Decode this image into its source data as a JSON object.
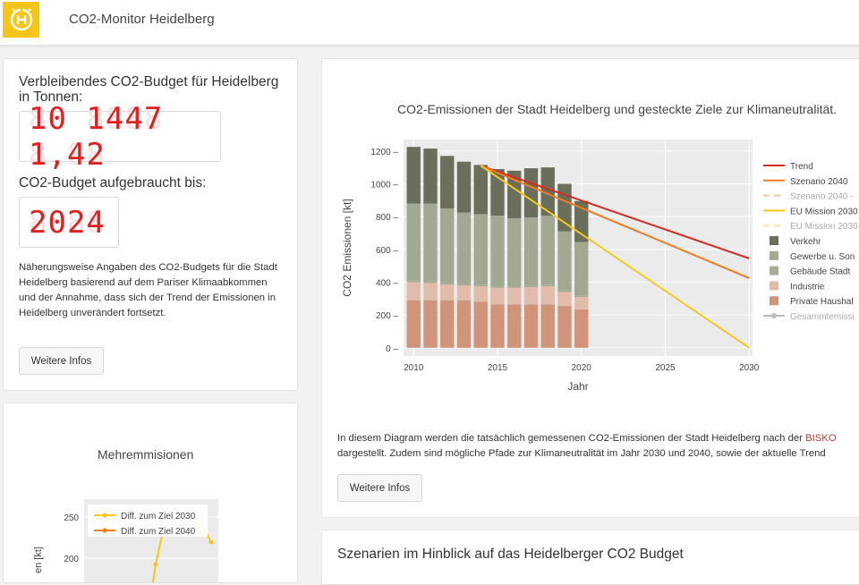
{
  "navbar": {
    "title": "CO2-Monitor Heidelberg"
  },
  "budget_panel": {
    "heading": "Verbleibendes CO2-Budget für Heidelberg in Tonnen:",
    "budget_value": "10 1447 1,42",
    "heading2": "CO2-Budget aufgebraucht bis:",
    "year_value": "2024",
    "description": "Näherungsweise Angaben des CO2-Budgets für die Stadt Heidelberg basierend auf dem Pariser Klimaabkommen und der Annahme, dass sich der Trend der Emissionen in Heidelberg unverändert fortsetzt.",
    "button_label": "Weitere Infos"
  },
  "main_panel": {
    "description_part1": "In diesem Diagram werden die tatsächlich gemessenen CO2-Emissionen der Stadt Heidelberg nach der ",
    "description_link": "BISKO",
    "description_part2": "dargestellt. Zudem sind mögliche Pfade zur Klimaneutralität im Jahr 2030 und 2040, sowie der aktuelle Trend",
    "button_label": "Weitere Infos"
  },
  "szenarien_panel": {
    "heading": "Szenarien im Hinblick auf das Heidelberger CO2 Budget"
  },
  "colors": {
    "verkehr": "#6b6e5b",
    "gewerbe": "#a3a892",
    "gebaeude": "#a9ab96",
    "industrie": "#e2bcaa",
    "haushalte": "#cf9479",
    "trend": "#d62b1f",
    "szenario2040": "#f07c1e",
    "eu2030": "#f7c81a"
  },
  "chart_data": [
    {
      "type": "bar",
      "title": "CO2-Emissionen der Stadt Heidelberg und gesteckte Ziele zur Klimaneutralität.",
      "xlabel": "Jahr",
      "ylabel": "CO2 Emissionen [kt]",
      "xlim": [
        2009.4,
        2030.2
      ],
      "ylim": [
        -50,
        1270
      ],
      "xticks": [
        2010,
        2015,
        2020,
        2025,
        2030
      ],
      "yticks": [
        0,
        200,
        400,
        600,
        800,
        1000,
        1200
      ],
      "x": [
        2010,
        2011,
        2012,
        2013,
        2014,
        2015,
        2016,
        2017,
        2018,
        2019,
        2020
      ],
      "stack_series": [
        {
          "name": "Private Haushal",
          "color_key": "haushalte",
          "values": [
            290,
            290,
            290,
            290,
            280,
            265,
            265,
            265,
            265,
            255,
            235
          ]
        },
        {
          "name": "Industrie",
          "color_key": "industrie",
          "values": [
            110,
            105,
            95,
            90,
            95,
            100,
            100,
            105,
            110,
            85,
            75
          ]
        },
        {
          "name": "Gebäude Stadt",
          "color_key": "gebaeude",
          "values": [
            10,
            10,
            10,
            10,
            10,
            10,
            10,
            10,
            10,
            10,
            10
          ]
        },
        {
          "name": "Gewerbe u. Son",
          "color_key": "gewerbe",
          "values": [
            470,
            475,
            455,
            435,
            430,
            430,
            415,
            415,
            420,
            360,
            325
          ]
        },
        {
          "name": "Verkehr",
          "color_key": "verkehr",
          "values": [
            345,
            335,
            320,
            310,
            300,
            285,
            290,
            300,
            295,
            290,
            250
          ]
        }
      ],
      "line_series": [
        {
          "name": "Trend",
          "color_key": "trend",
          "points": [
            [
              2014,
              1110
            ],
            [
              2030,
              545
            ]
          ]
        },
        {
          "name": "Szenario 2040",
          "color_key": "szenario2040",
          "points": [
            [
              2014,
              1110
            ],
            [
              2030,
              425
            ]
          ]
        },
        {
          "name": "EU Mission 2030",
          "color_key": "eu2030",
          "points": [
            [
              2014,
              1110
            ],
            [
              2030,
              0
            ]
          ]
        }
      ],
      "legend": [
        {
          "name": "Trend",
          "kind": "line",
          "color_key": "trend"
        },
        {
          "name": "Szenario 2040",
          "kind": "line",
          "color_key": "szenario2040"
        },
        {
          "name": "Szenario 2040 -",
          "kind": "dash",
          "color_key": "szenario2040"
        },
        {
          "name": "EU Mission 2030",
          "kind": "line",
          "color_key": "eu2030"
        },
        {
          "name": "EU Mission 2030",
          "kind": "dash",
          "color_key": "eu2030"
        },
        {
          "name": "Verkehr",
          "kind": "box",
          "color_key": "verkehr"
        },
        {
          "name": "Gewerbe u. Son",
          "kind": "box",
          "color_key": "gewerbe"
        },
        {
          "name": "Gebäude Stadt",
          "kind": "box",
          "color_key": "gebaeude"
        },
        {
          "name": "Industrie",
          "kind": "box",
          "color_key": "industrie"
        },
        {
          "name": "Private Haushal",
          "kind": "box",
          "color_key": "haushalte"
        },
        {
          "name": "Gesammtemissi",
          "kind": "marker",
          "color_key": "gray"
        }
      ],
      "legend_position": "right"
    },
    {
      "type": "line",
      "title": "Mehremmisionen",
      "ylabel": "en [kt]",
      "yticks": [
        200,
        250
      ],
      "series": [
        {
          "name": "Diff. zum Ziel 2030",
          "color_key": "eu2030"
        },
        {
          "name": "Diff. zum Ziel 2040",
          "color_key": "szenario2040"
        }
      ],
      "legend_position": "top-left"
    }
  ]
}
